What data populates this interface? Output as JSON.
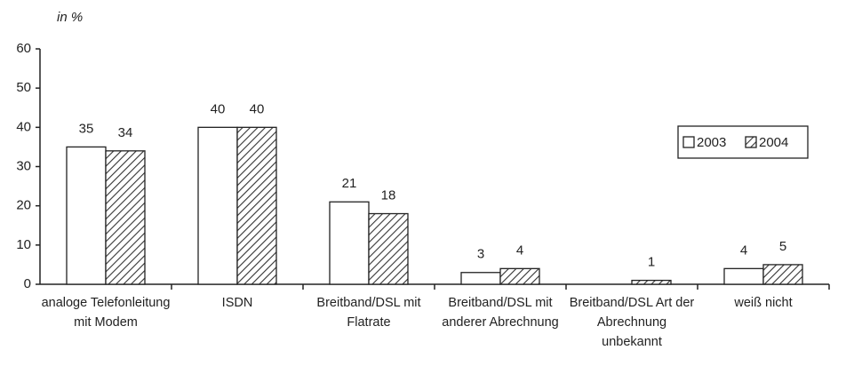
{
  "chart_data": {
    "type": "bar",
    "subtitle": "in %",
    "categories": [
      "analoge Telefonleitung mit Modem",
      "ISDN",
      "Breitband/DSL mit Flatrate",
      "Breitband/DSL mit anderer Abrechnung",
      "Breitband/DSL Art der Abrechnung unbekannt",
      "weiß nicht"
    ],
    "series": [
      {
        "name": "2003",
        "color": "#ffffff",
        "values": [
          35,
          40,
          21,
          3,
          null,
          4
        ]
      },
      {
        "name": "2004",
        "color": "hatch",
        "values": [
          34,
          40,
          18,
          4,
          1,
          5
        ]
      }
    ],
    "ylim": [
      0,
      60
    ],
    "yticks": [
      0,
      10,
      20,
      30,
      40,
      50,
      60
    ],
    "grid": false,
    "legend": "upper right"
  }
}
